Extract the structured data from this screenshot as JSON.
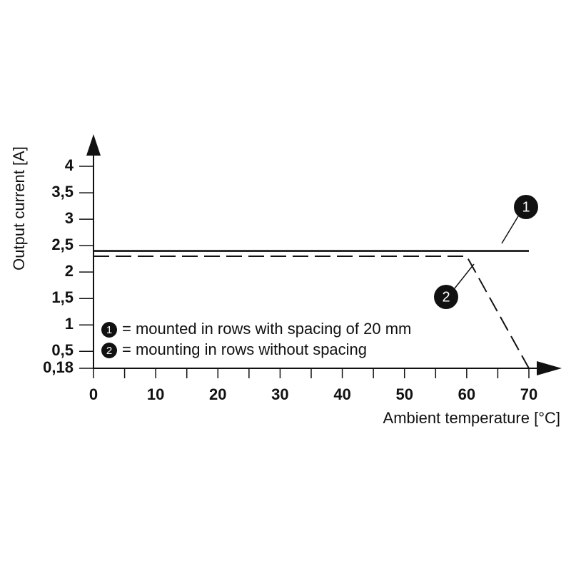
{
  "chart_data": {
    "type": "line",
    "x_label": "Ambient temperature [°C]",
    "y_label": "Output current [A]",
    "xlim": [
      0,
      70
    ],
    "xticks": [
      0,
      10,
      20,
      30,
      40,
      50,
      60,
      70
    ],
    "xminorticks": [
      5,
      15,
      25,
      35,
      45,
      55,
      65
    ],
    "ylim": [
      0.18,
      4.5
    ],
    "yticks": [
      {
        "value": 0.18,
        "label": "0,18"
      },
      {
        "value": 0.5,
        "label": "0,5"
      },
      1,
      {
        "value": 1.5,
        "label": "1,5"
      },
      2,
      {
        "value": 2.5,
        "label": "2,5"
      },
      3,
      {
        "value": 3.5,
        "label": "3,5"
      },
      4
    ],
    "grid": false,
    "series": [
      {
        "name": "1",
        "description": "= mounted in rows with spacing of 20 mm",
        "color": "#111111",
        "dashed": false,
        "x": [
          0,
          70
        ],
        "values": [
          2.4,
          2.4
        ]
      },
      {
        "name": "2",
        "description": "= mounting in rows without spacing",
        "color": "#111111",
        "dashed": true,
        "x": [
          0,
          60,
          70
        ],
        "values": [
          2.3,
          2.3,
          0.18
        ]
      }
    ]
  }
}
